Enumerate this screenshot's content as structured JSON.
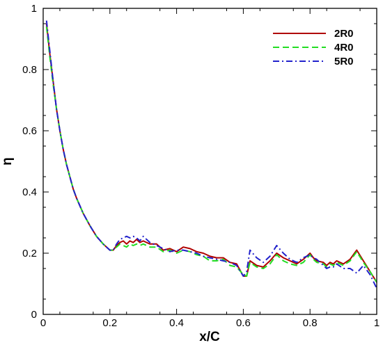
{
  "chart_data": {
    "type": "line",
    "title": "",
    "xlabel": "x/C",
    "ylabel": "η",
    "xlim": [
      0,
      1
    ],
    "ylim": [
      0,
      1
    ],
    "x_ticks": [
      "0",
      "0.2",
      "0.4",
      "0.6",
      "0.8",
      "1"
    ],
    "y_ticks": [
      "0",
      "0.2",
      "0.4",
      "0.6",
      "0.8",
      "1"
    ],
    "grid": false,
    "legend_position": "top-right",
    "series": [
      {
        "name": "2R0",
        "color": "#b00000",
        "dash": "solid",
        "x": [
          0.01,
          0.02,
          0.03,
          0.04,
          0.05,
          0.06,
          0.07,
          0.08,
          0.09,
          0.1,
          0.12,
          0.14,
          0.16,
          0.18,
          0.2,
          0.21,
          0.22,
          0.23,
          0.24,
          0.25,
          0.26,
          0.27,
          0.28,
          0.29,
          0.3,
          0.31,
          0.32,
          0.34,
          0.36,
          0.38,
          0.4,
          0.42,
          0.44,
          0.46,
          0.48,
          0.5,
          0.52,
          0.54,
          0.56,
          0.58,
          0.6,
          0.61,
          0.62,
          0.64,
          0.66,
          0.68,
          0.7,
          0.72,
          0.74,
          0.76,
          0.78,
          0.8,
          0.81,
          0.82,
          0.84,
          0.85,
          0.86,
          0.87,
          0.88,
          0.9,
          0.92,
          0.94,
          0.96,
          0.98,
          1.0
        ],
        "y": [
          0.95,
          0.85,
          0.76,
          0.67,
          0.6,
          0.54,
          0.49,
          0.45,
          0.41,
          0.38,
          0.33,
          0.29,
          0.255,
          0.23,
          0.21,
          0.21,
          0.225,
          0.235,
          0.24,
          0.23,
          0.24,
          0.235,
          0.245,
          0.235,
          0.24,
          0.235,
          0.23,
          0.23,
          0.21,
          0.215,
          0.205,
          0.22,
          0.215,
          0.205,
          0.2,
          0.19,
          0.185,
          0.185,
          0.17,
          0.165,
          0.125,
          0.125,
          0.175,
          0.16,
          0.155,
          0.175,
          0.2,
          0.185,
          0.175,
          0.165,
          0.18,
          0.2,
          0.185,
          0.175,
          0.17,
          0.16,
          0.17,
          0.165,
          0.175,
          0.165,
          0.18,
          0.21,
          0.175,
          0.14,
          0.105
        ]
      },
      {
        "name": "4R0",
        "color": "#22dd22",
        "dash": "dashed",
        "x": [
          0.01,
          0.02,
          0.03,
          0.04,
          0.05,
          0.06,
          0.07,
          0.08,
          0.09,
          0.1,
          0.12,
          0.14,
          0.16,
          0.18,
          0.2,
          0.21,
          0.22,
          0.23,
          0.24,
          0.25,
          0.26,
          0.27,
          0.28,
          0.29,
          0.3,
          0.31,
          0.32,
          0.34,
          0.36,
          0.38,
          0.4,
          0.42,
          0.44,
          0.46,
          0.48,
          0.5,
          0.52,
          0.54,
          0.56,
          0.58,
          0.6,
          0.61,
          0.62,
          0.64,
          0.66,
          0.68,
          0.7,
          0.72,
          0.74,
          0.76,
          0.78,
          0.8,
          0.81,
          0.82,
          0.84,
          0.85,
          0.86,
          0.87,
          0.88,
          0.9,
          0.92,
          0.94,
          0.96,
          0.98,
          1.0
        ],
        "y": [
          0.94,
          0.84,
          0.75,
          0.67,
          0.6,
          0.54,
          0.49,
          0.45,
          0.41,
          0.38,
          0.33,
          0.29,
          0.255,
          0.23,
          0.21,
          0.21,
          0.22,
          0.23,
          0.225,
          0.22,
          0.23,
          0.225,
          0.23,
          0.225,
          0.23,
          0.225,
          0.22,
          0.22,
          0.205,
          0.21,
          0.2,
          0.21,
          0.205,
          0.195,
          0.19,
          0.175,
          0.175,
          0.18,
          0.16,
          0.155,
          0.13,
          0.125,
          0.17,
          0.155,
          0.15,
          0.165,
          0.195,
          0.175,
          0.165,
          0.16,
          0.17,
          0.195,
          0.18,
          0.17,
          0.165,
          0.155,
          0.165,
          0.16,
          0.17,
          0.16,
          0.175,
          0.205,
          0.17,
          0.14,
          0.105
        ]
      },
      {
        "name": "5R0",
        "color": "#2222cc",
        "dash": "dashdot",
        "x": [
          0.01,
          0.02,
          0.03,
          0.04,
          0.05,
          0.06,
          0.07,
          0.08,
          0.09,
          0.1,
          0.12,
          0.14,
          0.16,
          0.18,
          0.2,
          0.21,
          0.22,
          0.23,
          0.24,
          0.25,
          0.26,
          0.27,
          0.28,
          0.29,
          0.3,
          0.31,
          0.32,
          0.34,
          0.36,
          0.38,
          0.4,
          0.42,
          0.44,
          0.46,
          0.48,
          0.5,
          0.52,
          0.54,
          0.56,
          0.58,
          0.6,
          0.61,
          0.62,
          0.64,
          0.66,
          0.68,
          0.7,
          0.72,
          0.74,
          0.76,
          0.78,
          0.8,
          0.81,
          0.82,
          0.84,
          0.85,
          0.86,
          0.87,
          0.88,
          0.9,
          0.92,
          0.94,
          0.96,
          0.98,
          1.0
        ],
        "y": [
          0.96,
          0.86,
          0.76,
          0.67,
          0.6,
          0.54,
          0.49,
          0.45,
          0.41,
          0.38,
          0.33,
          0.29,
          0.255,
          0.23,
          0.21,
          0.21,
          0.23,
          0.245,
          0.25,
          0.255,
          0.25,
          0.255,
          0.25,
          0.24,
          0.255,
          0.245,
          0.235,
          0.225,
          0.215,
          0.205,
          0.21,
          0.21,
          0.205,
          0.2,
          0.19,
          0.185,
          0.18,
          0.175,
          0.17,
          0.16,
          0.125,
          0.14,
          0.21,
          0.185,
          0.17,
          0.19,
          0.225,
          0.2,
          0.18,
          0.17,
          0.185,
          0.195,
          0.185,
          0.18,
          0.16,
          0.15,
          0.155,
          0.155,
          0.165,
          0.15,
          0.15,
          0.135,
          0.16,
          0.13,
          0.085
        ]
      }
    ]
  }
}
